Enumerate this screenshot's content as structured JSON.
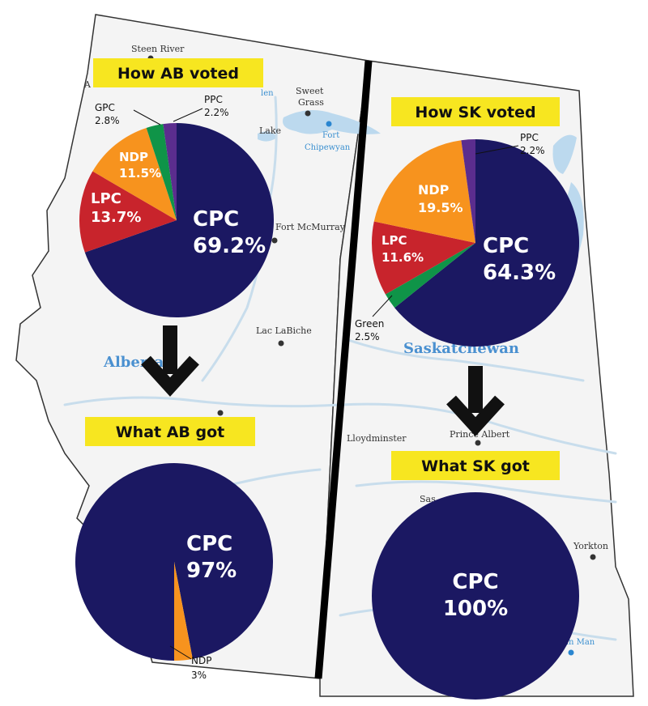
{
  "map": {
    "labels": {
      "steen_river": "Steen River",
      "sweet": "Sweet",
      "grass": "Grass",
      "fort": "Fort",
      "chipewyan": "Chipewyan",
      "lake": "Lake",
      "fort_mcmurray": "Fort McMurray",
      "lac_labiche": "Lac LaBiche",
      "alberta": "Alberta",
      "saskatchewan": "Saskatchewan",
      "lloydminster": "Lloydminster",
      "prince_albert": "Prince Albert",
      "yorkton": "Yorkton",
      "man": "an Man",
      "sas": "Sas"
    },
    "colors": {
      "land": "#f4f4f4",
      "water": "#bcd9ee",
      "rivers": "#c8ddec",
      "border": "#333333",
      "divider": "#000000"
    }
  },
  "banners": {
    "ab_voted": "How AB voted",
    "sk_voted": "How SK voted",
    "ab_got": "What AB got",
    "sk_got": "What SK got",
    "color": "#f7e620"
  },
  "icons": {
    "arrow": "down-arrow-icon"
  },
  "chart_data": [
    {
      "type": "pie",
      "title": "How AB voted",
      "slices": [
        {
          "label": "CPC",
          "value": 69.2,
          "value_label": "69.2%",
          "color": "#1b1862"
        },
        {
          "label": "LPC",
          "value": 13.7,
          "value_label": "13.7%",
          "color": "#c8242c"
        },
        {
          "label": "NDP",
          "value": 11.5,
          "value_label": "11.5%",
          "color": "#f7931e"
        },
        {
          "label": "GPC",
          "value": 2.8,
          "value_label": "2.8%",
          "color": "#0f9448"
        },
        {
          "label": "PPC",
          "value": 2.2,
          "value_label": "2.2%",
          "color": "#5b2d8e"
        }
      ]
    },
    {
      "type": "pie",
      "title": "How SK voted",
      "slices": [
        {
          "label": "CPC",
          "value": 64.3,
          "value_label": "64.3%",
          "color": "#1b1862"
        },
        {
          "label": "Green",
          "value": 2.5,
          "value_label": "2.5%",
          "color": "#0f9448"
        },
        {
          "label": "LPC",
          "value": 11.6,
          "value_label": "11.6%",
          "color": "#c8242c"
        },
        {
          "label": "NDP",
          "value": 19.5,
          "value_label": "19.5%",
          "color": "#f7931e"
        },
        {
          "label": "PPC",
          "value": 2.2,
          "value_label": "2.2%",
          "color": "#5b2d8e"
        }
      ]
    },
    {
      "type": "pie",
      "title": "What AB got",
      "slices": [
        {
          "label": "CPC",
          "value": 97,
          "value_label": "97%",
          "color": "#1b1862"
        },
        {
          "label": "NDP",
          "value": 3,
          "value_label": "3%",
          "color": "#f7931e"
        }
      ]
    },
    {
      "type": "pie",
      "title": "What SK got",
      "slices": [
        {
          "label": "CPC",
          "value": 100,
          "value_label": "100%",
          "color": "#1b1862"
        }
      ]
    }
  ]
}
